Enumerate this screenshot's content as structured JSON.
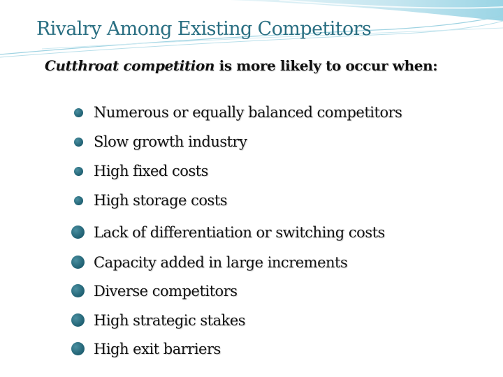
{
  "slide": {
    "title": "Rivalry Among Existing Competitors",
    "intro_em": "Cutthroat competition",
    "intro_rest": " is more likely to occur when:",
    "items": [
      {
        "label": "Numerous or equally balanced competitors"
      },
      {
        "label": "Slow growth industry"
      },
      {
        "label": "High fixed costs"
      },
      {
        "label": "High storage costs"
      },
      {
        "label": "Lack of differentiation or switching costs"
      },
      {
        "label": "Capacity added in large increments"
      },
      {
        "label": "Diverse competitors"
      },
      {
        "label": "High strategic stakes"
      },
      {
        "label": "High exit barriers"
      }
    ],
    "colors": {
      "title": "#2a6f82",
      "bullet": "#1f6072",
      "wave": "#7ec4d6"
    }
  }
}
